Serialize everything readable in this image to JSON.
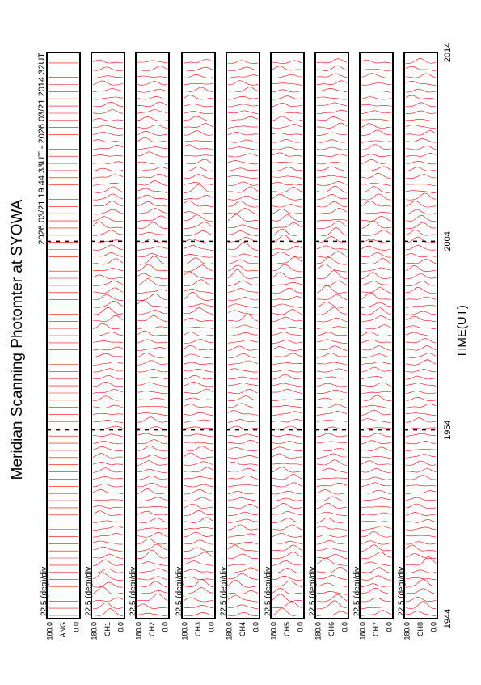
{
  "chart_data": {
    "type": "stacked-scan",
    "title": "Meridian Scanning Photomter at SYOWA",
    "subtitle": "2026 03/21 19:44:33UT - 2026 03/21 2014:32UT",
    "x_label": "TIME(UT)",
    "xticks": [
      "1944",
      "1954",
      "2004",
      "2014"
    ],
    "panels": [
      {
        "name": "ANG",
        "scale": "22.5 (deg)/div",
        "ymax": "180.0",
        "ymin": "0.0"
      },
      {
        "name": "CH1",
        "scale": "22.5 (deg)/div",
        "ymax": "180.0",
        "ymin": "0.0"
      },
      {
        "name": "CH2",
        "scale": "22.5 (deg)/div",
        "ymax": "180.0",
        "ymin": "0.0"
      },
      {
        "name": "CH3",
        "scale": "22.5 (deg)/div",
        "ymax": "180.0",
        "ymin": "0.0"
      },
      {
        "name": "CH4",
        "scale": "22.5 (deg)/div",
        "ymax": "180.0",
        "ymin": "0.0"
      },
      {
        "name": "CH5",
        "scale": "22.5 (deg)/div",
        "ymax": "180.0",
        "ymin": "0.0"
      },
      {
        "name": "CH6",
        "scale": "22.5 (deg)/div",
        "ymax": "180.0",
        "ymin": "0.0"
      },
      {
        "name": "CH7",
        "scale": "22.5 (deg)/div",
        "ymax": "180.0",
        "ymin": "0.0"
      },
      {
        "name": "CH8",
        "scale": "22.5 (deg)/div",
        "ymax": "180.0",
        "ymin": "0.0"
      }
    ],
    "line_color": "#ff0000"
  }
}
